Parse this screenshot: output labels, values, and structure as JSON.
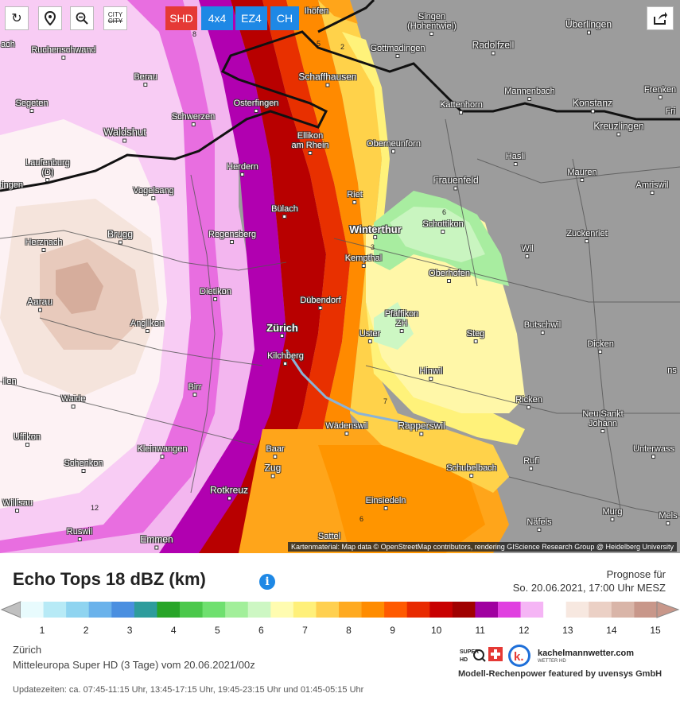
{
  "toolbar": {
    "reload_icon": "reload-icon",
    "location_icon": "map-pin-icon",
    "zoom_icon": "zoom-out-icon",
    "city_toggle_label_top": "CITY",
    "city_toggle_label_bottom": "CITY",
    "models": [
      {
        "label": "SHD",
        "color": "#e53935"
      },
      {
        "label": "4x4",
        "color": "#1e88e5"
      },
      {
        "label": "EZ4",
        "color": "#1e88e5"
      },
      {
        "label": "CH",
        "color": "#1e88e5"
      }
    ],
    "share_icon": "share-icon"
  },
  "map": {
    "cities": [
      {
        "name": "Ruchenschwand"
      },
      {
        "name": "Berau"
      },
      {
        "name": "Segeten"
      },
      {
        "name": "Schwerzen"
      },
      {
        "name": "Waldshut"
      },
      {
        "name": "Laufenburg\n(D)"
      },
      {
        "name": "Vogelsang"
      },
      {
        "name": "Herznach"
      },
      {
        "name": "Brugg"
      },
      {
        "name": "Regensberg"
      },
      {
        "name": "Aarau"
      },
      {
        "name": "Dietikon"
      },
      {
        "name": "Anglikon"
      },
      {
        "name": "Birr"
      },
      {
        "name": "Waide"
      },
      {
        "name": "Uffikon"
      },
      {
        "name": "Schenkon"
      },
      {
        "name": "Willisau"
      },
      {
        "name": "Ruswil"
      },
      {
        "name": "Emmen"
      },
      {
        "name": "Kleinwangen"
      },
      {
        "name": "Rotkreuz"
      },
      {
        "name": "Baar"
      },
      {
        "name": "Zug"
      },
      {
        "name": "Osterfingen"
      },
      {
        "name": "Schaffhausen"
      },
      {
        "name": "Ellikon\nam Rhein"
      },
      {
        "name": "Herdern"
      },
      {
        "name": "Bülach"
      },
      {
        "name": "Dübendorf"
      },
      {
        "name": "Zürich",
        "big": true
      },
      {
        "name": "Kilchberg"
      },
      {
        "name": "Wädenswil"
      },
      {
        "name": "Rapperswil"
      },
      {
        "name": "Einsiedeln"
      },
      {
        "name": "Sattel"
      },
      {
        "name": "Schubelbach"
      },
      {
        "name": "Singen\n(Hohentwiel)"
      },
      {
        "name": "Gottmadingen"
      },
      {
        "name": "Radolfzell"
      },
      {
        "name": "Überlingen"
      },
      {
        "name": "Mannenbach"
      },
      {
        "name": "Kattenhorn"
      },
      {
        "name": "Konstanz"
      },
      {
        "name": "Kreuzlingen"
      },
      {
        "name": "Frenken"
      },
      {
        "name": "Fri"
      },
      {
        "name": "Oberneunforn"
      },
      {
        "name": "Hasli"
      },
      {
        "name": "Frauenfeld"
      },
      {
        "name": "Mauren"
      },
      {
        "name": "Amriswil"
      },
      {
        "name": "Riet"
      },
      {
        "name": "Schottikon"
      },
      {
        "name": "Winterthur",
        "big": true
      },
      {
        "name": "Zuckenriet"
      },
      {
        "name": "Kempthal"
      },
      {
        "name": "Wil"
      },
      {
        "name": "Oberhofen"
      },
      {
        "name": "Pfäffikon\nZH"
      },
      {
        "name": "Uster"
      },
      {
        "name": "Steg"
      },
      {
        "name": "Butschwil"
      },
      {
        "name": "Dicken"
      },
      {
        "name": "Hinwil"
      },
      {
        "name": "Ricken"
      },
      {
        "name": "Neu Sankt\nJohann"
      },
      {
        "name": "Unterwass"
      },
      {
        "name": "Rufi"
      },
      {
        "name": "Murg"
      },
      {
        "name": "Näfels"
      },
      {
        "name": "Mels"
      },
      {
        "name": "Ihöfen"
      },
      {
        "name": "tingen"
      },
      {
        "name": "ach"
      },
      {
        "name": "ilen"
      },
      {
        "name": "ns"
      }
    ],
    "contour_labels": [
      "8",
      "5",
      "2",
      "3",
      "6",
      "7",
      "6",
      "12"
    ],
    "attribution": "Kartenmaterial: Map data © OpenStreetMap contributors, rendering GIScience Research Group @ Heidelberg University"
  },
  "legend": {
    "title": "Echo Tops 18 dBZ (km)",
    "info_icon": "info-icon",
    "forecast_label": "Prognose für",
    "forecast_time": "So. 20.06.2021, 17:00 Uhr MESZ",
    "ticks": [
      "1",
      "2",
      "3",
      "4",
      "5",
      "6",
      "7",
      "8",
      "9",
      "10",
      "11",
      "12",
      "13",
      "14",
      "15"
    ],
    "colors": [
      "#e8fbfd",
      "#b7eaf6",
      "#8fd4f0",
      "#6ab2eb",
      "#4a8fe0",
      "#2e9c9c",
      "#28a528",
      "#4bc84b",
      "#6fe06f",
      "#a2ef9a",
      "#cdf7c3",
      "#fffcb0",
      "#fff07a",
      "#ffd050",
      "#ffaa20",
      "#ff8c00",
      "#ff5a00",
      "#e82a00",
      "#c80000",
      "#a00000",
      "#a000a0",
      "#e040e0",
      "#f5b5f5",
      "#ffffff",
      "#f7e8e0",
      "#ebd0c5",
      "#d9b5a8",
      "#c8978a"
    ]
  },
  "footer": {
    "location": "Zürich",
    "model": "Mitteleuropa Super HD (3 Tage) vom 20.06.2021/00z",
    "updates": "Updatezeiten: ca. 07:45-11:15 Uhr, 13:45-17:15 Uhr, 19:45-23:15 Uhr und 01:45-05:15 Uhr",
    "brand_site": "kachelmannwetter.com",
    "brand_sub": "WETTER HD",
    "super_hd": "SUPER HD",
    "powered": "Modell-Rechenpower featured by uvensys GmbH"
  }
}
